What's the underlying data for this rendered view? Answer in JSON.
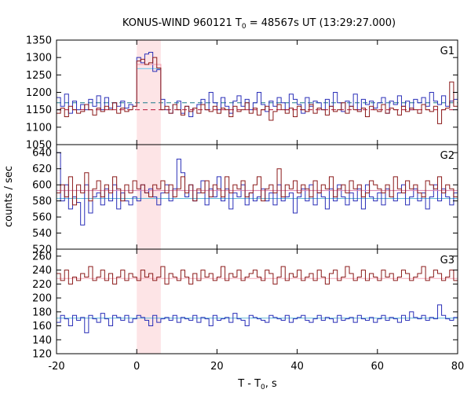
{
  "figure": {
    "title_main": "KONUS-WIND 960121 T",
    "title_sub": "0",
    "title_rest": " = 48567s UT (13:29:27.000)",
    "xlabel_main": "T - T",
    "xlabel_sub": "0",
    "xlabel_rest": ", s",
    "ylabel": "counts / sec"
  },
  "chart_data": {
    "type": "line",
    "style": "step histogram",
    "x_range": [
      -20,
      80
    ],
    "x_ticks": [
      "-20",
      "0",
      "20",
      "40",
      "60",
      "80"
    ],
    "x_tick_values": [
      -20,
      0,
      20,
      40,
      60,
      80
    ],
    "highlight_interval": [
      0.0,
      6.0
    ],
    "highlight_color": "#fde4e6",
    "bin_width": 1.0,
    "bin_start": -20,
    "panels": [
      {
        "label": "G1",
        "ylim": [
          1050,
          1350
        ],
        "y_ticks": [
          "1350",
          "1300",
          "1250",
          "1200",
          "1150",
          "1100",
          "1050"
        ],
        "y_tick_values": [
          1350,
          1300,
          1250,
          1200,
          1150,
          1100,
          1050
        ],
        "series": [
          {
            "color": "#2a2fb8",
            "background": 1170,
            "background_color": "#1a7a8a",
            "background_style": "dashed",
            "peak_level": 1268,
            "peak_level_color": "#87ceeb",
            "values": [
              1185,
              1160,
              1195,
              1140,
              1175,
              1150,
              1165,
              1150,
              1180,
              1160,
              1190,
              1150,
              1185,
              1155,
              1170,
              1160,
              1175,
              1155,
              1165,
              1160,
              1300,
              1285,
              1310,
              1315,
              1260,
              1265,
              1180,
              1150,
              1140,
              1165,
              1175,
              1140,
              1160,
              1130,
              1155,
              1165,
              1180,
              1150,
              1200,
              1170,
              1150,
              1185,
              1160,
              1140,
              1175,
              1190,
              1160,
              1180,
              1150,
              1170,
              1200,
              1165,
              1145,
              1175,
              1160,
              1185,
              1170,
              1150,
              1195,
              1180,
              1165,
              1140,
              1185,
              1160,
              1175,
              1170,
              1150,
              1180,
              1160,
              1200,
              1170,
              1145,
              1175,
              1160,
              1195,
              1150,
              1180,
              1165,
              1175,
              1155,
              1170,
              1185,
              1140,
              1175,
              1165,
              1190,
              1160,
              1175,
              1150,
              1180,
              1170,
              1185,
              1160,
              1200,
              1175,
              1165,
              1190,
              1160,
              1175,
              1180
            ]
          },
          {
            "color": "#8b1a1a",
            "background": 1150,
            "background_color": "#b8163a",
            "background_style": "dashed",
            "peak_level": 1280,
            "peak_level_color": "#f7a8b8",
            "values": [
              1140,
              1155,
              1130,
              1160,
              1150,
              1140,
              1145,
              1165,
              1150,
              1135,
              1155,
              1145,
              1160,
              1150,
              1170,
              1140,
              1155,
              1145,
              1150,
              1160,
              1290,
              1295,
              1280,
              1285,
              1300,
              1270,
              1150,
              1160,
              1140,
              1165,
              1150,
              1135,
              1160,
              1145,
              1155,
              1140,
              1165,
              1150,
              1145,
              1160,
              1140,
              1155,
              1150,
              1130,
              1160,
              1145,
              1150,
              1170,
              1140,
              1155,
              1135,
              1150,
              1160,
              1120,
              1145,
              1165,
              1150,
              1140,
              1155,
              1130,
              1160,
              1150,
              1145,
              1165,
              1140,
              1155,
              1150,
              1135,
              1160,
              1145,
              1150,
              1170,
              1140,
              1160,
              1150,
              1145,
              1155,
              1130,
              1160,
              1150,
              1145,
              1165,
              1140,
              1155,
              1150,
              1135,
              1160,
              1145,
              1155,
              1150,
              1140,
              1165,
              1150,
              1145,
              1160,
              1110,
              1150,
              1155,
              1230,
              1160
            ]
          }
        ]
      },
      {
        "label": "G2",
        "ylim": [
          520,
          650
        ],
        "y_ticks": [
          "640",
          "620",
          "600",
          "580",
          "560",
          "540",
          "520"
        ],
        "y_tick_values": [
          640,
          620,
          600,
          580,
          560,
          540,
          520
        ],
        "series": [
          {
            "color": "#2a2fb8",
            "background": 583,
            "background_color": "#5fb8d8",
            "background_style": "solid",
            "values": [
              640,
              580,
              600,
              570,
              585,
              578,
              550,
              600,
              565,
              585,
              590,
              575,
              595,
              580,
              600,
              570,
              590,
              580,
              575,
              585,
              580,
              600,
              590,
              595,
              585,
              575,
              590,
              600,
              580,
              595,
              632,
              615,
              585,
              600,
              580,
              590,
              605,
              575,
              595,
              585,
              610,
              580,
              595,
              570,
              590,
              585,
              600,
              575,
              590,
              580,
              585,
              595,
              580,
              590,
              575,
              600,
              580,
              585,
              590,
              565,
              585,
              595,
              580,
              600,
              575,
              590,
              585,
              570,
              595,
              580,
              600,
              585,
              575,
              590,
              580,
              595,
              570,
              600,
              585,
              580,
              590,
              575,
              595,
              585,
              580,
              590,
              600,
              575,
              585,
              595,
              580,
              590,
              570,
              585,
              600,
              580,
              595,
              585,
              575,
              590
            ]
          },
          {
            "color": "#8b1a1a",
            "background": 593,
            "background_color": "#d87aa8",
            "background_style": "solid",
            "values": [
              590,
              600,
              585,
              610,
              575,
              600,
              590,
              615,
              580,
              595,
              605,
              585,
              600,
              590,
              610,
              595,
              580,
              600,
              590,
              605,
              595,
              600,
              590,
              585,
              600,
              595,
              605,
              590,
              600,
              585,
              595,
              610,
              590,
              600,
              580,
              595,
              590,
              605,
              585,
              600,
              595,
              585,
              610,
              590,
              600,
              595,
              605,
              585,
              590,
              600,
              610,
              580,
              595,
              600,
              590,
              620,
              585,
              600,
              595,
              605,
              590,
              600,
              595,
              585,
              605,
              590,
              600,
              595,
              610,
              585,
              595,
              600,
              590,
              605,
              595,
              600,
              585,
              590,
              605,
              600,
              595,
              590,
              600,
              585,
              610,
              595,
              590,
              605,
              595,
              600,
              590,
              585,
              605,
              600,
              595,
              610,
              590,
              600,
              595,
              585
            ]
          }
        ]
      },
      {
        "label": "G3",
        "ylim": [
          120,
          270
        ],
        "y_ticks": [
          "260",
          "240",
          "220",
          "200",
          "180",
          "160",
          "140",
          "120"
        ],
        "y_tick_values": [
          260,
          240,
          220,
          200,
          180,
          160,
          140,
          120
        ],
        "series": [
          {
            "color": "#8b1a1a",
            "background": 228,
            "background_color": "#f7a8b8",
            "background_style": "solid",
            "values": [
              235,
              225,
              240,
              220,
              230,
              225,
              235,
              230,
              245,
              225,
              230,
              240,
              225,
              235,
              220,
              230,
              240,
              225,
              235,
              230,
              225,
              240,
              230,
              235,
              225,
              230,
              245,
              220,
              235,
              230,
              225,
              240,
              230,
              220,
              235,
              225,
              240,
              230,
              235,
              225,
              230,
              245,
              225,
              235,
              230,
              240,
              225,
              230,
              235,
              240,
              230,
              225,
              240,
              235,
              220,
              230,
              245,
              225,
              235,
              230,
              240,
              225,
              230,
              235,
              225,
              240,
              230,
              220,
              235,
              240,
              225,
              230,
              245,
              235,
              225,
              230,
              240,
              225,
              235,
              230,
              225,
              240,
              230,
              235,
              225,
              230,
              240,
              235,
              225,
              230,
              235,
              245,
              225,
              230,
              240,
              235,
              225,
              230,
              240,
              225
            ]
          },
          {
            "color": "#2a2fb8",
            "background": 171,
            "background_color": "#5fb8d8",
            "background_style": "solid",
            "values": [
              165,
              175,
              170,
              160,
              175,
              168,
              172,
              150,
              175,
              170,
              165,
              178,
              170,
              160,
              175,
              172,
              168,
              175,
              165,
              170,
              175,
              172,
              168,
              160,
              175,
              165,
              170,
              172,
              168,
              175,
              165,
              172,
              170,
              168,
              175,
              165,
              172,
              170,
              160,
              175,
              168,
              170,
              172,
              165,
              178,
              170,
              168,
              160,
              175,
              172,
              170,
              168,
              165,
              175,
              172,
              170,
              168,
              175,
              165,
              170,
              172,
              175,
              168,
              165,
              170,
              175,
              168,
              172,
              170,
              165,
              175,
              168,
              170,
              172,
              165,
              175,
              170,
              168,
              172,
              165,
              170,
              175,
              168,
              172,
              170,
              165,
              175,
              168,
              180,
              172,
              170,
              175,
              168,
              172,
              170,
              190,
              175,
              170,
              168,
              172
            ]
          }
        ]
      }
    ]
  }
}
